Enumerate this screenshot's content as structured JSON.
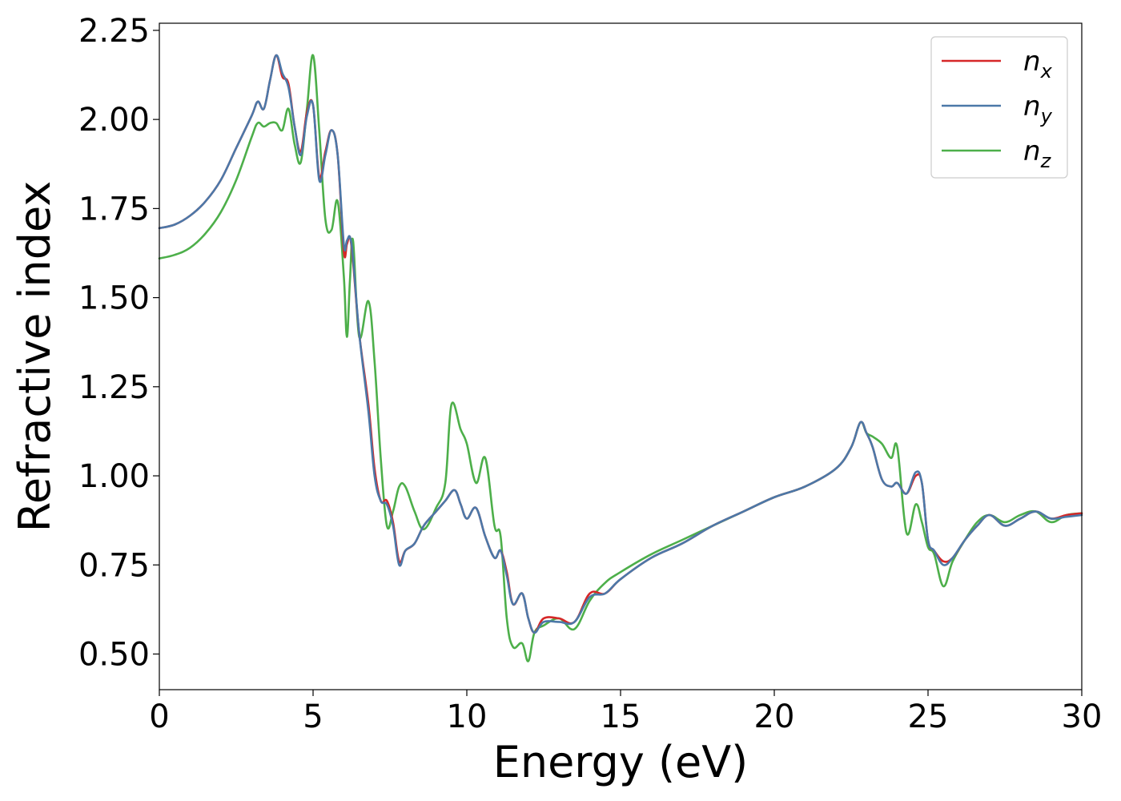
{
  "chart_data": {
    "type": "line",
    "title": "",
    "xlabel": "Energy (eV)",
    "ylabel": "Refractive index",
    "xlim": [
      0,
      30
    ],
    "ylim": [
      0.4,
      2.27
    ],
    "xticks": [
      0,
      5,
      10,
      15,
      20,
      25,
      30
    ],
    "yticks": [
      0.5,
      0.75,
      1.0,
      1.25,
      1.5,
      1.75,
      2.0,
      2.25
    ],
    "xtick_labels": [
      "0",
      "5",
      "10",
      "15",
      "20",
      "25",
      "30"
    ],
    "ytick_labels": [
      "0.50",
      "0.75",
      "1.00",
      "1.25",
      "1.50",
      "1.75",
      "2.00",
      "2.25"
    ],
    "grid": false,
    "legend_position": "top-right",
    "series": [
      {
        "name": "n_x",
        "legend_base": "n",
        "legend_sub": "x",
        "color": "#d62728",
        "x": [
          0,
          0.5,
          1.0,
          1.5,
          2.0,
          2.5,
          3.0,
          3.2,
          3.4,
          3.6,
          3.8,
          4.0,
          4.2,
          4.4,
          4.6,
          4.8,
          5.0,
          5.2,
          5.4,
          5.6,
          5.8,
          6.0,
          6.1,
          6.2,
          6.3,
          6.5,
          6.8,
          7.0,
          7.2,
          7.4,
          7.6,
          7.8,
          8.0,
          8.3,
          8.6,
          9.0,
          9.3,
          9.6,
          9.8,
          10.0,
          10.3,
          10.6,
          10.9,
          11.1,
          11.3,
          11.5,
          11.8,
          12.0,
          12.2,
          12.5,
          13.0,
          13.5,
          14.0,
          14.5,
          15.0,
          16.0,
          17.0,
          18.0,
          19.0,
          20.0,
          21.0,
          22.0,
          22.5,
          22.8,
          23.0,
          23.2,
          23.5,
          23.8,
          24.0,
          24.3,
          24.6,
          24.8,
          25.0,
          25.2,
          25.5,
          25.8,
          26.2,
          26.6,
          27.0,
          27.5,
          28.0,
          28.5,
          29.0,
          29.5,
          30.0
        ],
        "y": [
          1.695,
          1.705,
          1.73,
          1.77,
          1.83,
          1.92,
          2.01,
          2.05,
          2.03,
          2.11,
          2.18,
          2.12,
          2.1,
          1.98,
          1.91,
          2.02,
          2.04,
          1.84,
          1.91,
          1.97,
          1.9,
          1.63,
          1.65,
          1.67,
          1.6,
          1.4,
          1.2,
          1.02,
          0.93,
          0.93,
          0.87,
          0.76,
          0.79,
          0.81,
          0.86,
          0.9,
          0.93,
          0.96,
          0.92,
          0.88,
          0.91,
          0.83,
          0.77,
          0.79,
          0.73,
          0.64,
          0.67,
          0.6,
          0.56,
          0.6,
          0.6,
          0.59,
          0.67,
          0.67,
          0.71,
          0.77,
          0.81,
          0.86,
          0.9,
          0.94,
          0.97,
          1.02,
          1.08,
          1.15,
          1.12,
          1.08,
          0.99,
          0.97,
          0.98,
          0.95,
          1.0,
          0.98,
          0.82,
          0.79,
          0.76,
          0.77,
          0.82,
          0.86,
          0.89,
          0.86,
          0.88,
          0.9,
          0.88,
          0.89,
          0.895
        ]
      },
      {
        "name": "n_y",
        "legend_base": "n",
        "legend_sub": "y",
        "color": "#4c78a8",
        "x": [
          0,
          0.5,
          1.0,
          1.5,
          2.0,
          2.5,
          3.0,
          3.2,
          3.4,
          3.6,
          3.8,
          4.0,
          4.2,
          4.4,
          4.6,
          4.8,
          5.0,
          5.2,
          5.4,
          5.6,
          5.8,
          6.0,
          6.1,
          6.2,
          6.3,
          6.5,
          6.8,
          7.0,
          7.2,
          7.4,
          7.6,
          7.8,
          8.0,
          8.3,
          8.6,
          9.0,
          9.3,
          9.6,
          9.8,
          10.0,
          10.3,
          10.6,
          10.9,
          11.1,
          11.3,
          11.5,
          11.8,
          12.0,
          12.2,
          12.5,
          13.0,
          13.5,
          14.0,
          14.5,
          15.0,
          16.0,
          17.0,
          18.0,
          19.0,
          20.0,
          21.0,
          22.0,
          22.5,
          22.8,
          23.0,
          23.2,
          23.5,
          23.8,
          24.0,
          24.3,
          24.6,
          24.8,
          25.0,
          25.2,
          25.5,
          25.8,
          26.2,
          26.6,
          27.0,
          27.5,
          28.0,
          28.5,
          29.0,
          29.5,
          30.0
        ],
        "y": [
          1.695,
          1.705,
          1.73,
          1.77,
          1.83,
          1.92,
          2.01,
          2.05,
          2.03,
          2.11,
          2.18,
          2.13,
          2.09,
          1.98,
          1.9,
          2.01,
          2.04,
          1.83,
          1.9,
          1.97,
          1.9,
          1.65,
          1.66,
          1.67,
          1.61,
          1.4,
          1.18,
          1.0,
          0.93,
          0.92,
          0.86,
          0.75,
          0.79,
          0.81,
          0.86,
          0.9,
          0.93,
          0.96,
          0.92,
          0.88,
          0.91,
          0.83,
          0.77,
          0.79,
          0.72,
          0.64,
          0.67,
          0.6,
          0.56,
          0.59,
          0.59,
          0.59,
          0.66,
          0.67,
          0.71,
          0.77,
          0.81,
          0.86,
          0.9,
          0.94,
          0.97,
          1.02,
          1.08,
          1.15,
          1.12,
          1.08,
          0.99,
          0.97,
          0.98,
          0.95,
          1.01,
          0.98,
          0.82,
          0.79,
          0.75,
          0.77,
          0.82,
          0.86,
          0.89,
          0.86,
          0.88,
          0.9,
          0.88,
          0.885,
          0.89
        ]
      },
      {
        "name": "n_z",
        "legend_base": "n",
        "legend_sub": "z",
        "color": "#4daf4a",
        "x": [
          0,
          0.5,
          1.0,
          1.5,
          2.0,
          2.5,
          3.0,
          3.2,
          3.4,
          3.6,
          3.8,
          4.0,
          4.2,
          4.4,
          4.6,
          4.8,
          5.0,
          5.2,
          5.4,
          5.6,
          5.8,
          6.0,
          6.1,
          6.2,
          6.3,
          6.5,
          6.8,
          7.0,
          7.2,
          7.4,
          7.6,
          7.8,
          8.0,
          8.3,
          8.6,
          9.0,
          9.3,
          9.5,
          9.8,
          10.0,
          10.3,
          10.6,
          10.9,
          11.1,
          11.3,
          11.5,
          11.8,
          12.0,
          12.2,
          12.5,
          13.0,
          13.5,
          14.0,
          14.5,
          15.0,
          16.0,
          17.0,
          18.0,
          19.0,
          20.0,
          21.0,
          22.0,
          22.5,
          22.8,
          23.0,
          23.2,
          23.5,
          23.8,
          24.0,
          24.3,
          24.6,
          24.8,
          25.0,
          25.2,
          25.5,
          25.8,
          26.2,
          26.6,
          27.0,
          27.5,
          28.0,
          28.5,
          29.0,
          29.5,
          30.0
        ],
        "y": [
          1.61,
          1.62,
          1.64,
          1.68,
          1.74,
          1.83,
          1.95,
          1.99,
          1.98,
          1.99,
          1.99,
          1.97,
          2.03,
          1.93,
          1.88,
          2.03,
          2.18,
          1.97,
          1.72,
          1.69,
          1.77,
          1.56,
          1.39,
          1.55,
          1.66,
          1.39,
          1.49,
          1.32,
          1.05,
          0.86,
          0.9,
          0.97,
          0.97,
          0.9,
          0.85,
          0.91,
          0.98,
          1.2,
          1.13,
          1.09,
          0.98,
          1.05,
          0.86,
          0.83,
          0.6,
          0.52,
          0.53,
          0.48,
          0.56,
          0.58,
          0.6,
          0.57,
          0.65,
          0.7,
          0.73,
          0.78,
          0.82,
          0.86,
          0.9,
          0.94,
          0.97,
          1.02,
          1.08,
          1.15,
          1.12,
          1.11,
          1.09,
          1.05,
          1.08,
          0.84,
          0.92,
          0.87,
          0.8,
          0.78,
          0.69,
          0.76,
          0.82,
          0.87,
          0.89,
          0.87,
          0.89,
          0.9,
          0.87,
          0.89,
          0.895
        ]
      }
    ]
  }
}
